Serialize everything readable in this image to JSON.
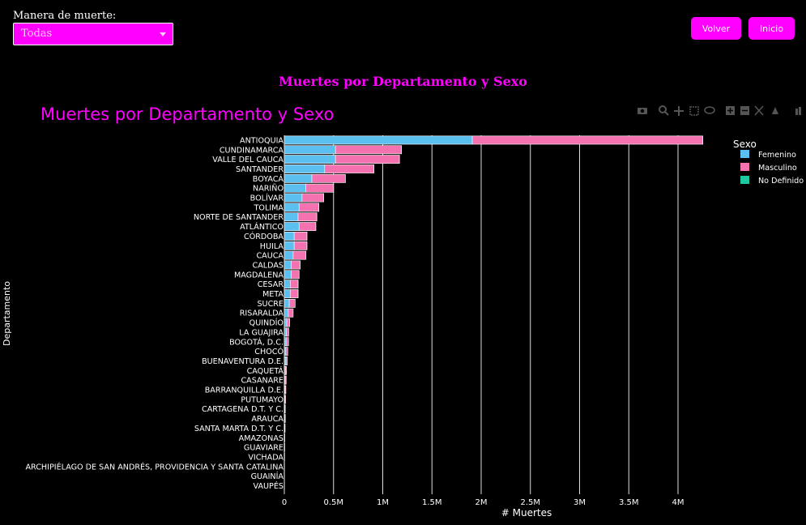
{
  "filter": {
    "label": "Manera de muerte:",
    "selected": "Todas"
  },
  "buttons": {
    "back": "Volver",
    "home": "Inicio"
  },
  "page_title": "Muertes por Departamento y Sexo",
  "colors": {
    "accent": "#ff00ff",
    "femenino": "#5bc0f0",
    "masculino": "#f472b0",
    "no_definido": "#1ec8a0"
  },
  "chart_data": {
    "type": "bar",
    "orientation": "horizontal",
    "barmode": "stack",
    "title": "Muertes por Departamento y Sexo",
    "xlabel": "# Muertes",
    "ylabel": "Departamento",
    "xlim": [
      0,
      4300000
    ],
    "xticks": [
      0,
      500000,
      1000000,
      1500000,
      2000000,
      2500000,
      3000000,
      3500000,
      4000000
    ],
    "xtick_labels": [
      "0",
      "0.5M",
      "1M",
      "1.5M",
      "2M",
      "2.5M",
      "3M",
      "3.5M",
      "4M"
    ],
    "legend_title": "Sexo",
    "legend_position": "top-right",
    "categories": [
      "ANTIOQUIA",
      "CUNDINAMARCA",
      "VALLE DEL CAUCA",
      "SANTANDER",
      "BOYACÁ",
      "NARIÑO",
      "BOLÍVAR",
      "TOLIMA",
      "NORTE DE SANTANDER",
      "ATLÁNTICO",
      "CÓRDOBA",
      "HUILA",
      "CAUCA",
      "CALDAS",
      "MAGDALENA",
      "CESAR",
      "META",
      "SUCRE",
      "RISARALDA",
      "QUINDÍO",
      "LA GUAJIRA",
      "BOGOTÁ, D.C.",
      "CHOCÓ",
      "BUENAVENTURA D.E.",
      "CAQUETÁ",
      "CASANARE",
      "BARRANQUILLA D.E.",
      "PUTUMAYO",
      "CARTAGENA D.T. Y C.",
      "ARAUCA",
      "SANTA MARTA D.T. Y C.",
      "AMAZONAS",
      "GUAVIARE",
      "VICHADA",
      "ARCHIPIÉLAGO DE SAN ANDRÉS, PROVIDENCIA Y SANTA CATALINA",
      "GUAINÍA",
      "VAUPÉS"
    ],
    "series": [
      {
        "name": "Femenino",
        "color": "#5bc0f0",
        "values": [
          1910000,
          520000,
          520000,
          410000,
          280000,
          220000,
          180000,
          150000,
          140000,
          150000,
          100000,
          100000,
          90000,
          70000,
          70000,
          60000,
          60000,
          50000,
          40000,
          25000,
          20000,
          18000,
          15000,
          15000,
          10000,
          9000,
          8000,
          6000,
          5000,
          5000,
          4000,
          2000,
          2000,
          1500,
          1000,
          800,
          600
        ]
      },
      {
        "name": "Masculino",
        "color": "#f472b0",
        "values": [
          2340000,
          670000,
          650000,
          500000,
          340000,
          280000,
          220000,
          200000,
          190000,
          170000,
          130000,
          130000,
          130000,
          90000,
          80000,
          80000,
          80000,
          60000,
          50000,
          30000,
          25000,
          25000,
          20000,
          15000,
          12000,
          10000,
          8000,
          7000,
          5000,
          5000,
          4000,
          2500,
          2000,
          1500,
          1000,
          800,
          600
        ]
      },
      {
        "name": "No Definido",
        "color": "#1ec8a0",
        "values": [
          2000,
          500,
          500,
          300,
          200,
          200,
          200,
          100,
          100,
          100,
          100,
          100,
          100,
          100,
          100,
          100,
          100,
          0,
          0,
          0,
          0,
          0,
          0,
          0,
          0,
          0,
          0,
          0,
          0,
          0,
          0,
          0,
          0,
          0,
          0,
          0,
          0
        ]
      }
    ]
  }
}
